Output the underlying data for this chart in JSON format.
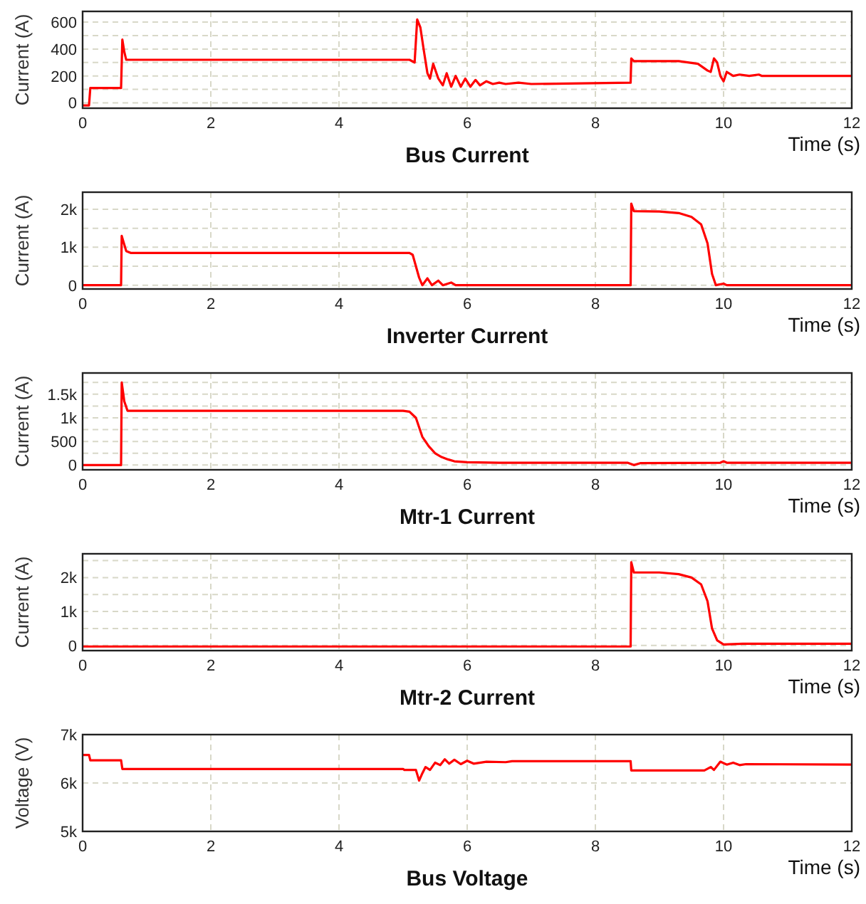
{
  "chart_data": [
    {
      "type": "line",
      "title": "Bus Current",
      "xlabel": "Time (s)",
      "ylabel": "Current (A)",
      "xlim": [
        0,
        12
      ],
      "xticks": [
        0,
        2,
        4,
        6,
        8,
        10,
        12
      ],
      "ylim": [
        -40,
        680
      ],
      "yticks": [
        0,
        {
          "value": 100,
          "label": null
        },
        200,
        {
          "value": 300,
          "label": null
        },
        400,
        {
          "value": 500,
          "label": null
        },
        600
      ],
      "grid": true,
      "series": [
        {
          "color": "#ff0000",
          "x": [
            0,
            0.1,
            0.12,
            0.6,
            0.62,
            0.65,
            0.68,
            5.1,
            5.18,
            5.22,
            5.27,
            5.32,
            5.38,
            5.42,
            5.47,
            5.55,
            5.62,
            5.68,
            5.75,
            5.82,
            5.9,
            5.97,
            6.05,
            6.13,
            6.2,
            6.3,
            6.4,
            6.5,
            6.6,
            6.8,
            7.0,
            8.55,
            8.56,
            8.6,
            9.3,
            9.6,
            9.75,
            9.8,
            9.85,
            9.9,
            9.95,
            10.0,
            10.05,
            10.15,
            10.25,
            10.4,
            10.55,
            10.6,
            12
          ],
          "values": [
            -20,
            -20,
            110,
            110,
            470,
            380,
            320,
            320,
            300,
            620,
            560,
            400,
            220,
            180,
            290,
            180,
            130,
            220,
            120,
            200,
            120,
            180,
            120,
            170,
            130,
            160,
            140,
            150,
            140,
            150,
            140,
            150,
            330,
            310,
            310,
            290,
            240,
            230,
            330,
            300,
            200,
            160,
            230,
            200,
            210,
            200,
            210,
            200,
            200
          ]
        }
      ]
    },
    {
      "type": "line",
      "title": "Inverter Current",
      "xlabel": "Time (s)",
      "ylabel": "Current (A)",
      "xlim": [
        0,
        12
      ],
      "xticks": [
        0,
        2,
        4,
        6,
        8,
        10,
        12
      ],
      "ylim": [
        -100,
        2450
      ],
      "yticks": [
        {
          "value": 0,
          "label": "0"
        },
        {
          "value": 500,
          "label": null
        },
        {
          "value": 1000,
          "label": "1k"
        },
        {
          "value": 1500,
          "label": null
        },
        {
          "value": 2000,
          "label": "2k"
        }
      ],
      "grid": true,
      "series": [
        {
          "color": "#ff0000",
          "x": [
            0,
            0.6,
            0.61,
            0.68,
            0.75,
            5.1,
            5.15,
            5.25,
            5.3,
            5.38,
            5.45,
            5.55,
            5.62,
            5.75,
            5.82,
            8.55,
            8.56,
            8.6,
            9.0,
            9.3,
            9.5,
            9.65,
            9.75,
            9.82,
            9.88,
            10.0,
            10.05,
            12
          ],
          "values": [
            0,
            0,
            1300,
            900,
            850,
            850,
            800,
            200,
            0,
            180,
            0,
            120,
            0,
            70,
            0,
            0,
            2150,
            1950,
            1940,
            1900,
            1800,
            1600,
            1100,
            300,
            0,
            40,
            0,
            0
          ]
        }
      ]
    },
    {
      "type": "line",
      "title": "Mtr-1 Current",
      "xlabel": "Time (s)",
      "ylabel": "Current (A)",
      "xlim": [
        0,
        12
      ],
      "xticks": [
        0,
        2,
        4,
        6,
        8,
        10,
        12
      ],
      "ylim": [
        -100,
        1950
      ],
      "yticks": [
        {
          "value": 0,
          "label": "0"
        },
        {
          "value": 250,
          "label": null
        },
        {
          "value": 500,
          "label": "500"
        },
        {
          "value": 750,
          "label": null
        },
        {
          "value": 1000,
          "label": "1k"
        },
        {
          "value": 1250,
          "label": null
        },
        {
          "value": 1500,
          "label": "1.5k"
        },
        {
          "value": 1750,
          "label": null
        }
      ],
      "grid": true,
      "series": [
        {
          "color": "#ff0000",
          "x": [
            0,
            0.6,
            0.61,
            0.65,
            0.7,
            5.0,
            5.1,
            5.2,
            5.3,
            5.4,
            5.5,
            5.6,
            5.7,
            5.8,
            6.0,
            6.5,
            8.5,
            8.6,
            8.7,
            9.95,
            10.0,
            10.05,
            12
          ],
          "values": [
            0,
            0,
            1750,
            1350,
            1150,
            1150,
            1130,
            1000,
            600,
            400,
            250,
            170,
            120,
            80,
            60,
            50,
            50,
            0,
            40,
            50,
            80,
            50,
            50
          ]
        }
      ]
    },
    {
      "type": "line",
      "title": "Mtr-2 Current",
      "xlabel": "Time (s)",
      "ylabel": "Current (A)",
      "xlim": [
        0,
        12
      ],
      "xticks": [
        0,
        2,
        4,
        6,
        8,
        10,
        12
      ],
      "ylim": [
        -150,
        2700
      ],
      "yticks": [
        {
          "value": 0,
          "label": "0"
        },
        {
          "value": 500,
          "label": null
        },
        {
          "value": 1000,
          "label": "1k"
        },
        {
          "value": 1500,
          "label": null
        },
        {
          "value": 2000,
          "label": "2k"
        },
        {
          "value": 2500,
          "label": null
        }
      ],
      "grid": true,
      "series": [
        {
          "color": "#ff0000",
          "x": [
            0,
            8.55,
            8.56,
            8.6,
            9.0,
            9.3,
            9.5,
            9.65,
            9.75,
            9.82,
            9.9,
            10.0,
            10.3,
            12
          ],
          "values": [
            -30,
            -30,
            2450,
            2150,
            2150,
            2100,
            2000,
            1800,
            1300,
            500,
            150,
            30,
            50,
            50
          ]
        }
      ]
    },
    {
      "type": "line",
      "title": "Bus Voltage",
      "xlabel": "Time (s)",
      "ylabel": "Voltage (V)",
      "xlim": [
        0,
        12
      ],
      "xticks": [
        0,
        2,
        4,
        6,
        8,
        10,
        12
      ],
      "ylim": [
        5000,
        7000
      ],
      "yticks": [
        {
          "value": 5000,
          "label": "5k"
        },
        {
          "value": 6000,
          "label": "6k"
        },
        {
          "value": 7000,
          "label": "7k"
        }
      ],
      "grid": true,
      "series": [
        {
          "color": "#ff0000",
          "x": [
            0.01,
            0.1,
            0.12,
            0.6,
            0.62,
            5.0,
            5.02,
            5.2,
            5.25,
            5.3,
            5.35,
            5.42,
            5.5,
            5.58,
            5.65,
            5.72,
            5.8,
            5.9,
            6.0,
            6.1,
            6.3,
            6.6,
            6.7,
            8.55,
            8.56,
            9.7,
            9.8,
            9.85,
            9.95,
            10.05,
            10.15,
            10.25,
            10.35,
            12
          ],
          "values": [
            6580,
            6580,
            6470,
            6470,
            6290,
            6290,
            6270,
            6270,
            6050,
            6200,
            6330,
            6270,
            6420,
            6370,
            6490,
            6400,
            6480,
            6390,
            6460,
            6400,
            6440,
            6430,
            6450,
            6450,
            6260,
            6260,
            6330,
            6270,
            6440,
            6380,
            6420,
            6370,
            6390,
            6380
          ]
        }
      ]
    }
  ]
}
